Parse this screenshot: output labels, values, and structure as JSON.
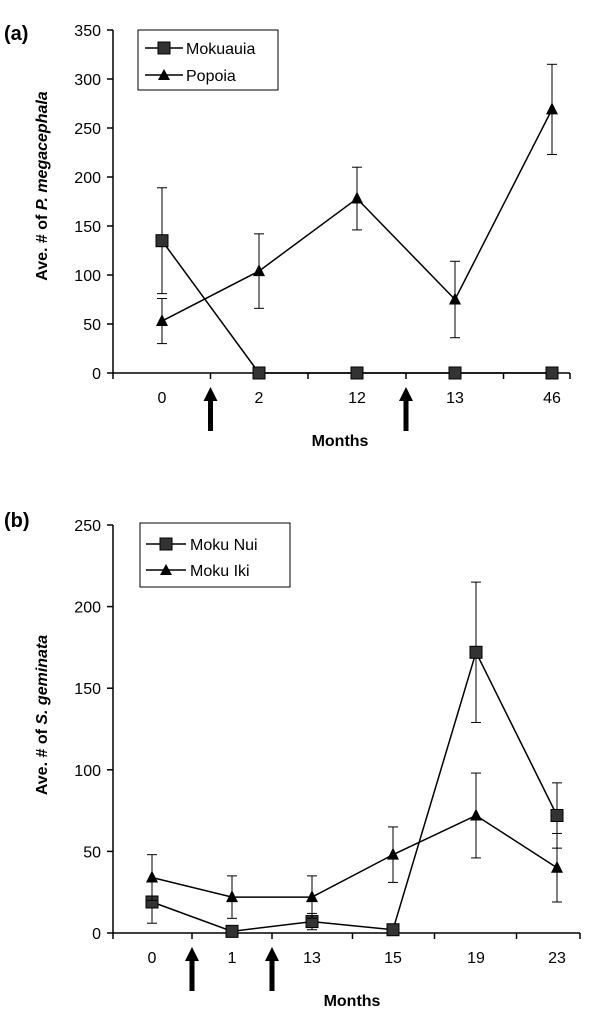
{
  "chart_data": [
    {
      "panel": "(a)",
      "type": "line",
      "categories": [
        "0",
        "2",
        "12",
        "13",
        "46"
      ],
      "series": [
        {
          "name": "Mokuauia",
          "marker": "square",
          "values": [
            135,
            0,
            0,
            0,
            0
          ],
          "error": [
            54,
            0,
            0,
            0,
            0
          ]
        },
        {
          "name": "Popoia",
          "marker": "triangle",
          "values": [
            53,
            104,
            178,
            75,
            269
          ],
          "error": [
            23,
            38,
            32,
            39,
            46
          ]
        }
      ],
      "xlabel": "Months",
      "ylabel_prefix": "Ave. # of ",
      "ylabel_species": "P. megacephala",
      "ylim": [
        0,
        350
      ],
      "yticks": [
        "0",
        "50",
        "100",
        "150",
        "200",
        "250",
        "300",
        "350"
      ],
      "arrows_after_category_index": [
        0,
        2
      ],
      "legend": "top-left",
      "grid": false
    },
    {
      "panel": "(b)",
      "type": "line",
      "categories": [
        "0",
        "1",
        "13",
        "15",
        "19",
        "23"
      ],
      "series": [
        {
          "name": "Moku Nui",
          "marker": "square",
          "values": [
            19,
            1,
            7,
            2,
            172,
            72
          ],
          "error": [
            13,
            2,
            5,
            1,
            43,
            20
          ]
        },
        {
          "name": "Moku Iki",
          "marker": "triangle",
          "values": [
            34,
            22,
            22,
            48,
            72,
            40
          ],
          "error": [
            14,
            13,
            13,
            17,
            26,
            21
          ]
        }
      ],
      "xlabel": "Months",
      "ylabel_prefix": "Ave. # of ",
      "ylabel_species": "S. geminata",
      "ylim": [
        0,
        250
      ],
      "yticks": [
        "0",
        "50",
        "100",
        "150",
        "200",
        "250"
      ],
      "arrows_after_category_index": [
        0,
        1
      ],
      "legend": "top-left",
      "grid": false
    }
  ]
}
